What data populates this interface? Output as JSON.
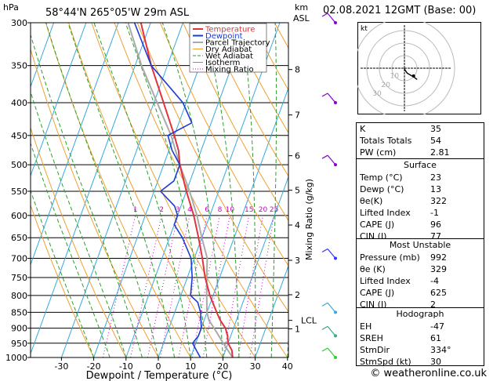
{
  "chart_data": {
    "type": "line",
    "header": {
      "hpa_unit": "hPa",
      "location": "58°44'N 265°05'W 29m ASL",
      "date": "02.08.2021 12GMT (Base: 00)",
      "km_unit": "km",
      "asl_unit": "ASL"
    },
    "xlabel": "Dewpoint / Temperature (°C)",
    "mixing_axis_label": "Mixing Ratio (g/kg)",
    "x_ticks": [
      "-30",
      "-20",
      "-10",
      "0",
      "10",
      "20",
      "30",
      "40"
    ],
    "xlim": [
      -35,
      40
    ],
    "ylim": [
      1000,
      300
    ],
    "pressure_ticks": [
      "300",
      "350",
      "400",
      "450",
      "500",
      "550",
      "600",
      "650",
      "700",
      "750",
      "800",
      "850",
      "900",
      "950",
      "1000"
    ],
    "km_ticks": [
      {
        "label": "8",
        "p": 355
      },
      {
        "label": "7",
        "p": 418
      },
      {
        "label": "6",
        "p": 484
      },
      {
        "label": "5",
        "p": 548
      },
      {
        "label": "4",
        "p": 621
      },
      {
        "label": "3",
        "p": 705
      },
      {
        "label": "2",
        "p": 798
      },
      {
        "label": "1",
        "p": 902
      }
    ],
    "lcl": {
      "label": "LCL",
      "p": 875
    },
    "mixing_ratio_labels": [
      "1",
      "2",
      "3",
      "4",
      "6",
      "8",
      "10",
      "15",
      "20",
      "25"
    ],
    "legend": [
      "Temperature",
      "Dewpoint",
      "Parcel Trajectory",
      "Dry Adiabat",
      "Wet Adiabat",
      "Isotherm",
      "Mixing Ratio"
    ],
    "colors": {
      "temperature": "#e0343b",
      "dewpoint": "#1a3bd4",
      "parcel": "#aaaaaa",
      "dry_adiabat": "#f0a030",
      "wet_adiabat": "#2aa02a",
      "isotherm": "#33aadd",
      "mixing_ratio": "#cc00cc"
    },
    "series": [
      {
        "name": "Temperature",
        "points": [
          [
            1000,
            23
          ],
          [
            975,
            22
          ],
          [
            950,
            20
          ],
          [
            925,
            19
          ],
          [
            900,
            17.5
          ],
          [
            875,
            15
          ],
          [
            850,
            13
          ],
          [
            800,
            9
          ],
          [
            750,
            5.5
          ],
          [
            700,
            2.5
          ],
          [
            650,
            -1
          ],
          [
            600,
            -5
          ],
          [
            550,
            -10
          ],
          [
            500,
            -15
          ],
          [
            475,
            -17
          ],
          [
            450,
            -20
          ],
          [
            400,
            -27
          ],
          [
            350,
            -35
          ],
          [
            300,
            -43
          ]
        ]
      },
      {
        "name": "Dewpoint",
        "points": [
          [
            1000,
            13
          ],
          [
            975,
            11
          ],
          [
            950,
            9
          ],
          [
            925,
            10
          ],
          [
            900,
            10
          ],
          [
            850,
            8
          ],
          [
            820,
            6
          ],
          [
            800,
            3
          ],
          [
            750,
            1.5
          ],
          [
            700,
            -1
          ],
          [
            650,
            -6
          ],
          [
            620,
            -10
          ],
          [
            600,
            -10
          ],
          [
            580,
            -12
          ],
          [
            550,
            -18
          ],
          [
            530,
            -15
          ],
          [
            500,
            -15
          ],
          [
            475,
            -19
          ],
          [
            450,
            -22
          ],
          [
            430,
            -16
          ],
          [
            400,
            -21
          ],
          [
            350,
            -35
          ],
          [
            300,
            -45
          ]
        ]
      },
      {
        "name": "Parcel Trajectory",
        "points": [
          [
            1000,
            23
          ],
          [
            950,
            18.5
          ],
          [
            900,
            14
          ],
          [
            875,
            11.5
          ],
          [
            850,
            10
          ],
          [
            800,
            8
          ],
          [
            750,
            6
          ],
          [
            700,
            4
          ],
          [
            650,
            0
          ],
          [
            600,
            -4
          ],
          [
            550,
            -9
          ],
          [
            500,
            -15
          ],
          [
            450,
            -21
          ],
          [
            400,
            -29
          ],
          [
            350,
            -38
          ],
          [
            300,
            -47
          ]
        ]
      }
    ],
    "winds": [
      {
        "p": 300,
        "color": "#8800cc"
      },
      {
        "p": 400,
        "color": "#8800cc"
      },
      {
        "p": 500,
        "color": "#8800cc"
      },
      {
        "p": 700,
        "color": "#3333ff"
      },
      {
        "p": 850,
        "color": "#33aadd"
      },
      {
        "p": 925,
        "color": "#33aa88"
      },
      {
        "p": 1000,
        "color": "#33cc33"
      }
    ]
  },
  "hodograph": {
    "unit_label": "kt",
    "ring_labels": [
      "10",
      "20",
      "30"
    ],
    "trace": [
      [
        0,
        0
      ],
      [
        1,
        -3
      ],
      [
        4,
        -7
      ],
      [
        9,
        -10
      ],
      [
        14,
        -13
      ],
      [
        18,
        -16
      ]
    ],
    "storm_motion": [
      13,
      -11
    ]
  },
  "indices": [
    {
      "label": "K",
      "value": "35"
    },
    {
      "label": "Totals Totals",
      "value": "54"
    },
    {
      "label": "PW (cm)",
      "value": "2.81"
    }
  ],
  "surface": {
    "title": "Surface",
    "rows": [
      {
        "label": "Temp (°C)",
        "value": "23"
      },
      {
        "label": "Dewp (°C)",
        "value": "13"
      },
      {
        "label": "θe(K)",
        "value": "322"
      },
      {
        "label": "Lifted Index",
        "value": "-1"
      },
      {
        "label": "CAPE (J)",
        "value": "96"
      },
      {
        "label": "CIN (J)",
        "value": "77"
      }
    ]
  },
  "most_unstable": {
    "title": "Most Unstable",
    "rows": [
      {
        "label": "Pressure (mb)",
        "value": "992"
      },
      {
        "label": "θe (K)",
        "value": "329"
      },
      {
        "label": "Lifted Index",
        "value": "-4"
      },
      {
        "label": "CAPE (J)",
        "value": "625"
      },
      {
        "label": "CIN (J)",
        "value": "2"
      }
    ]
  },
  "hodograph_params": {
    "title": "Hodograph",
    "rows": [
      {
        "label": "EH",
        "value": "-47"
      },
      {
        "label": "SREH",
        "value": "61"
      },
      {
        "label": "StmDir",
        "value": "334°"
      },
      {
        "label": "StmSpd (kt)",
        "value": "30"
      }
    ]
  },
  "copyright": "© weatheronline.co.uk"
}
